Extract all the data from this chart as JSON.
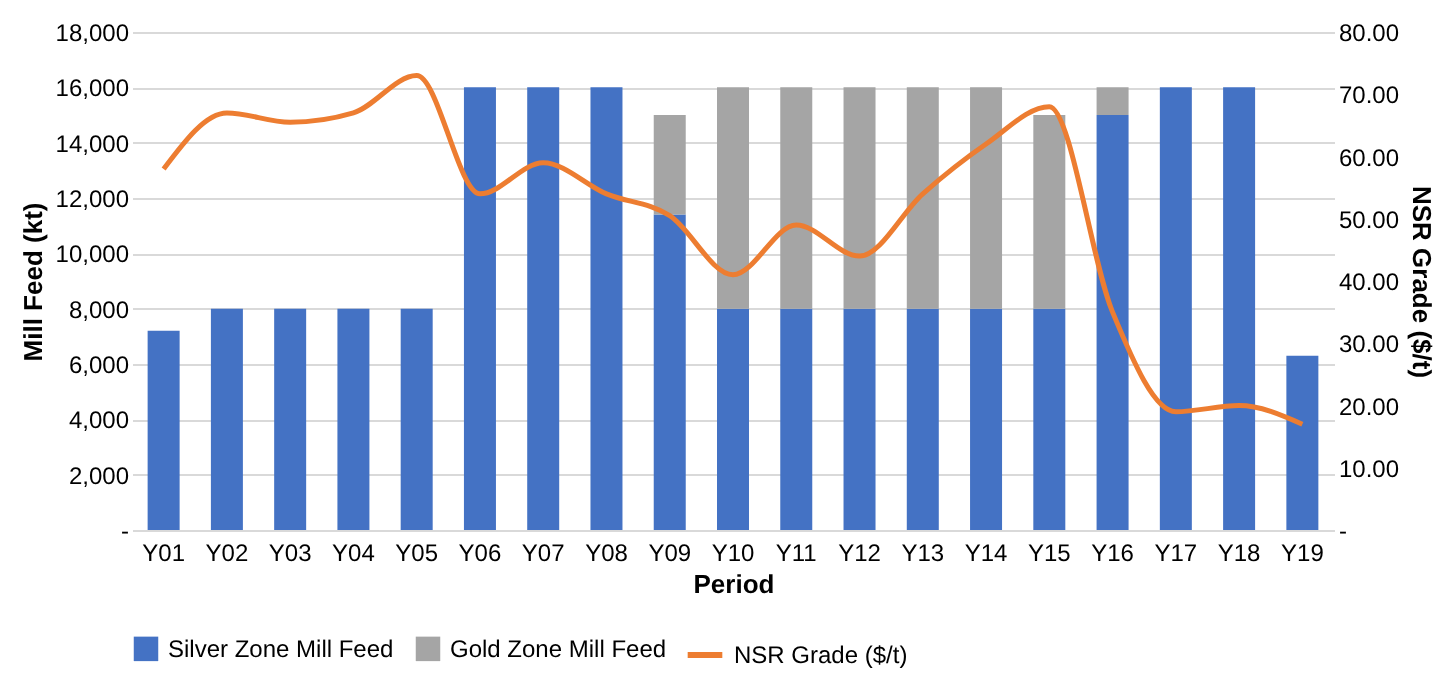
{
  "chart_data": {
    "type": "bar",
    "stacked": true,
    "xlabel": "Period",
    "ylabel": "Mill Feed (kt)",
    "y2label": "NSR Grade ($/t)",
    "categories": [
      "Y01",
      "Y02",
      "Y03",
      "Y04",
      "Y05",
      "Y06",
      "Y07",
      "Y08",
      "Y09",
      "Y10",
      "Y11",
      "Y12",
      "Y13",
      "Y14",
      "Y15",
      "Y16",
      "Y17",
      "Y18",
      "Y19"
    ],
    "series": [
      {
        "name": "Silver Zone Mill Feed",
        "color": "#4472c4",
        "values": [
          7200,
          8000,
          8000,
          8000,
          8000,
          16000,
          16000,
          16000,
          11400,
          8000,
          8000,
          8000,
          8000,
          8000,
          8000,
          15000,
          16000,
          16000,
          6300
        ]
      },
      {
        "name": "Gold Zone Mill Feed",
        "color": "#a5a5a5",
        "values": [
          0,
          0,
          0,
          0,
          0,
          0,
          0,
          0,
          3600,
          8000,
          8000,
          8000,
          8000,
          8000,
          7000,
          1000,
          0,
          0,
          0
        ]
      },
      {
        "name": "NSR Grade ($/t)",
        "type": "line",
        "axis": "y2",
        "color": "#ed7d31",
        "values": [
          58,
          67,
          65.5,
          67,
          73,
          54,
          59,
          54,
          50.5,
          41,
          49,
          44,
          54,
          62,
          68,
          35,
          19,
          20,
          17
        ]
      }
    ],
    "ylim": [
      0,
      18000
    ],
    "yticks": [
      {
        "value": 0,
        "label": "-"
      },
      {
        "value": 2000,
        "label": "2,000"
      },
      {
        "value": 4000,
        "label": "4,000"
      },
      {
        "value": 6000,
        "label": "6,000"
      },
      {
        "value": 8000,
        "label": "8,000"
      },
      {
        "value": 10000,
        "label": "10,000"
      },
      {
        "value": 12000,
        "label": "12,000"
      },
      {
        "value": 14000,
        "label": "14,000"
      },
      {
        "value": 16000,
        "label": "16,000"
      },
      {
        "value": 18000,
        "label": "18,000"
      }
    ],
    "y2lim": [
      0,
      80
    ],
    "y2ticks": [
      {
        "value": 0,
        "label": "-"
      },
      {
        "value": 10,
        "label": "10.00"
      },
      {
        "value": 20,
        "label": "20.00"
      },
      {
        "value": 30,
        "label": "30.00"
      },
      {
        "value": 40,
        "label": "40.00"
      },
      {
        "value": 50,
        "label": "50.00"
      },
      {
        "value": 60,
        "label": "60.00"
      },
      {
        "value": 70,
        "label": "70.00"
      },
      {
        "value": 80,
        "label": "80.00"
      }
    ],
    "grid": "y",
    "legend": "bottom",
    "line_style": "solid",
    "marker": "none"
  }
}
